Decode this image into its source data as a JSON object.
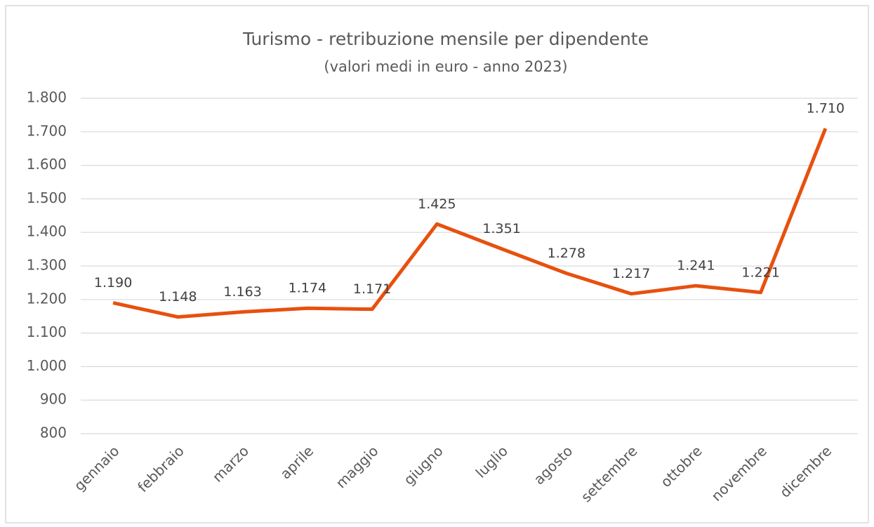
{
  "chart_data": {
    "type": "line",
    "title": "Turismo - retribuzione mensile per dipendente",
    "subtitle": "(valori medi in euro - anno 2023)",
    "categories": [
      "gennaio",
      "febbraio",
      "marzo",
      "aprile",
      "maggio",
      "giugno",
      "luglio",
      "agosto",
      "settembre",
      "ottobre",
      "novembre",
      "dicembre"
    ],
    "series": [
      {
        "name": "retribuzione",
        "color": "#e8500e",
        "values": [
          1190,
          1148,
          1163,
          1174,
          1171,
          1425,
          1351,
          1278,
          1217,
          1241,
          1221,
          1710
        ],
        "value_labels": [
          "1.190",
          "1.148",
          "1.163",
          "1.174",
          "1.171",
          "1.425",
          "1.351",
          "1.278",
          "1.217",
          "1.241",
          "1.221",
          "1.710"
        ]
      }
    ],
    "ylim": [
      800,
      1800
    ],
    "yticks": [
      {
        "value": 800,
        "label": "800"
      },
      {
        "value": 900,
        "label": "900"
      },
      {
        "value": 1000,
        "label": "1.000"
      },
      {
        "value": 1100,
        "label": "1.100"
      },
      {
        "value": 1200,
        "label": "1.200"
      },
      {
        "value": 1300,
        "label": "1.300"
      },
      {
        "value": 1400,
        "label": "1.400"
      },
      {
        "value": 1500,
        "label": "1.500"
      },
      {
        "value": 1600,
        "label": "1.600"
      },
      {
        "value": 1700,
        "label": "1.700"
      },
      {
        "value": 1800,
        "label": "1.800"
      }
    ],
    "grid": true
  }
}
